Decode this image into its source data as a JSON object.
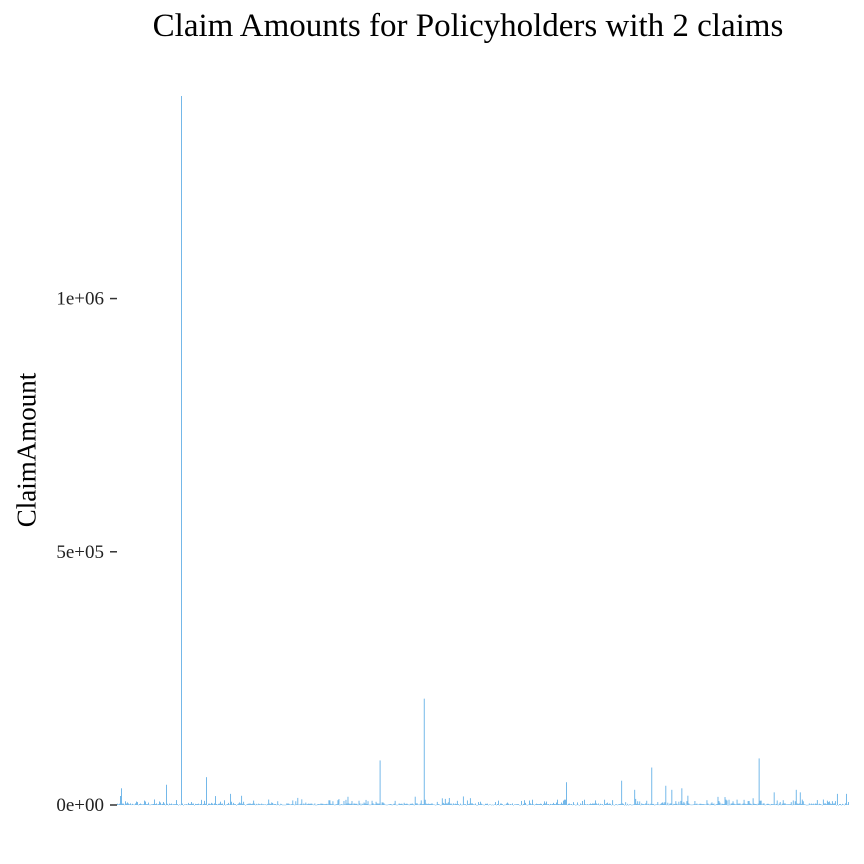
{
  "chart_data": {
    "type": "bar",
    "title": "Claim Amounts for Policyholders with 2 claims",
    "xlabel": "",
    "ylabel": "ClaimAmount",
    "ylim": [
      0,
      1400000
    ],
    "y_ticks": [
      0,
      500000,
      1000000
    ],
    "y_tick_labels": [
      "0e+00",
      "5e+05",
      "1e+06"
    ],
    "grid": false,
    "legend": "none",
    "bar_color": "#3a9be0",
    "n_bars": 730,
    "notable_bars": [
      {
        "index": 4,
        "value": 33000
      },
      {
        "index": 49,
        "value": 40000
      },
      {
        "index": 64,
        "value": 1400000
      },
      {
        "index": 89,
        "value": 55000
      },
      {
        "index": 113,
        "value": 22000
      },
      {
        "index": 262,
        "value": 88000
      },
      {
        "index": 306,
        "value": 210000
      },
      {
        "index": 448,
        "value": 45000
      },
      {
        "index": 503,
        "value": 48000
      },
      {
        "index": 516,
        "value": 30000
      },
      {
        "index": 533,
        "value": 74000
      },
      {
        "index": 547,
        "value": 38000
      },
      {
        "index": 553,
        "value": 30000
      },
      {
        "index": 563,
        "value": 33000
      },
      {
        "index": 640,
        "value": 92000
      },
      {
        "index": 655,
        "value": 25000
      },
      {
        "index": 677,
        "value": 30000
      },
      {
        "index": 681,
        "value": 25000
      },
      {
        "index": 718,
        "value": 22000
      },
      {
        "index": 727,
        "value": 22000
      }
    ]
  }
}
